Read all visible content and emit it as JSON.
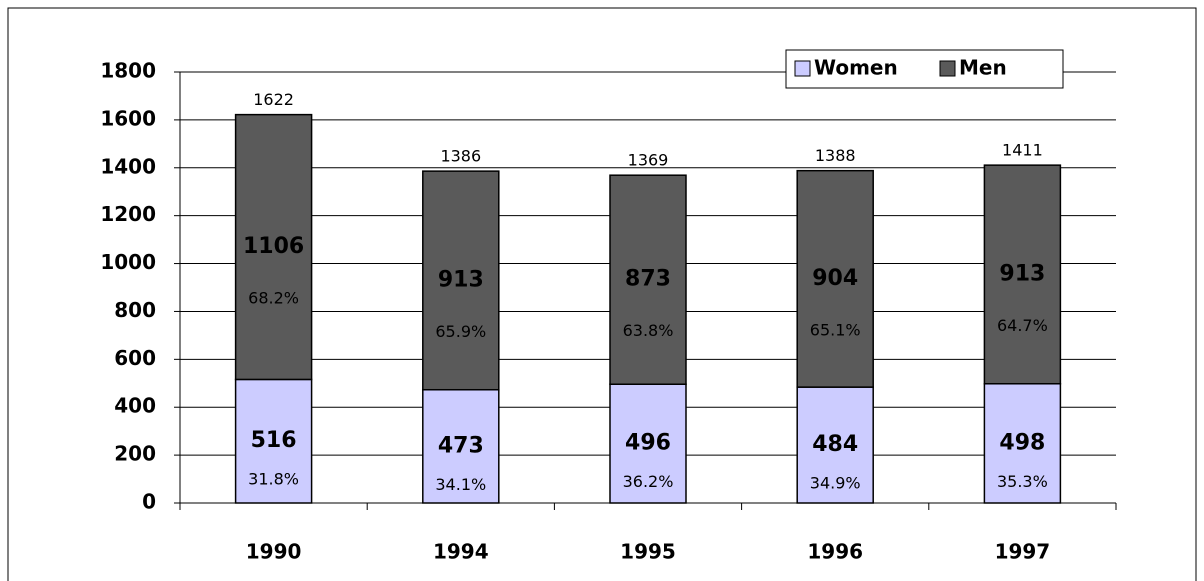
{
  "chart_data": {
    "type": "stacked_bar",
    "categories": [
      "1990",
      "1994",
      "1995",
      "1996",
      "1997"
    ],
    "series": [
      {
        "name": "Women",
        "color": "#ccccff",
        "values": [
          516,
          473,
          496,
          484,
          498
        ],
        "share_labels": [
          "31.8%",
          "34.1%",
          "36.2%",
          "34.9%",
          "35.3%"
        ]
      },
      {
        "name": "Men",
        "color": "#5a5a5a",
        "values": [
          1106,
          913,
          873,
          904,
          913
        ],
        "share_labels": [
          "68.2%",
          "65.9%",
          "63.8%",
          "65.1%",
          "64.7%"
        ]
      }
    ],
    "totals": [
      1622,
      1386,
      1369,
      1388,
      1411
    ],
    "ylim": [
      0,
      1800
    ],
    "yticks": [
      0,
      200,
      400,
      600,
      800,
      1000,
      1200,
      1400,
      1600,
      1800
    ],
    "grid": true,
    "legend": "top-right"
  }
}
